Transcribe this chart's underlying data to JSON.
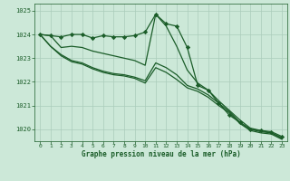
{
  "title": "Graphe pression niveau de la mer (hPa)",
  "background_color": "#cce8d8",
  "grid_color": "#aaccbb",
  "line_color": "#1a5c28",
  "x_values": [
    0,
    1,
    2,
    3,
    4,
    5,
    6,
    7,
    8,
    9,
    10,
    11,
    12,
    13,
    14,
    15,
    16,
    17,
    18,
    19,
    20,
    21,
    22,
    23
  ],
  "series_with_markers": [
    1024.0,
    1023.95,
    1023.9,
    1024.0,
    1024.0,
    1023.85,
    1023.95,
    1023.9,
    1023.9,
    1023.95,
    1024.1,
    1024.85,
    1024.45,
    1024.35,
    1023.45,
    1021.85,
    1021.65,
    1021.1,
    1020.6,
    1020.3,
    1020.0,
    1019.95,
    1019.9,
    1019.7
  ],
  "series2": [
    1024.0,
    1023.95,
    1023.45,
    1023.5,
    1023.45,
    1023.3,
    1023.2,
    1023.1,
    1023.0,
    1022.9,
    1022.7,
    1024.85,
    1024.35,
    1023.5,
    1022.5,
    1021.95,
    1021.65,
    1021.2,
    1020.8,
    1020.4,
    1020.05,
    1019.95,
    1019.85,
    1019.65
  ],
  "series3": [
    1024.0,
    1023.5,
    1023.15,
    1022.9,
    1022.8,
    1022.6,
    1022.45,
    1022.35,
    1022.3,
    1022.2,
    1022.05,
    1022.8,
    1022.6,
    1022.3,
    1021.85,
    1021.7,
    1021.45,
    1021.1,
    1020.75,
    1020.3,
    1020.0,
    1019.9,
    1019.85,
    1019.62
  ],
  "series4": [
    1024.0,
    1023.5,
    1023.1,
    1022.85,
    1022.75,
    1022.55,
    1022.4,
    1022.3,
    1022.25,
    1022.15,
    1021.95,
    1022.6,
    1022.4,
    1022.1,
    1021.75,
    1021.6,
    1021.35,
    1021.0,
    1020.7,
    1020.25,
    1019.95,
    1019.85,
    1019.8,
    1019.58
  ],
  "ylim": [
    1019.5,
    1025.3
  ],
  "yticks": [
    1020,
    1021,
    1022,
    1023,
    1024,
    1025
  ],
  "xlim": [
    -0.5,
    23.5
  ],
  "xticks": [
    0,
    1,
    2,
    3,
    4,
    5,
    6,
    7,
    8,
    9,
    10,
    11,
    12,
    13,
    14,
    15,
    16,
    17,
    18,
    19,
    20,
    21,
    22,
    23
  ],
  "marker": "D",
  "marker_size": 2.2,
  "line_width": 0.9
}
